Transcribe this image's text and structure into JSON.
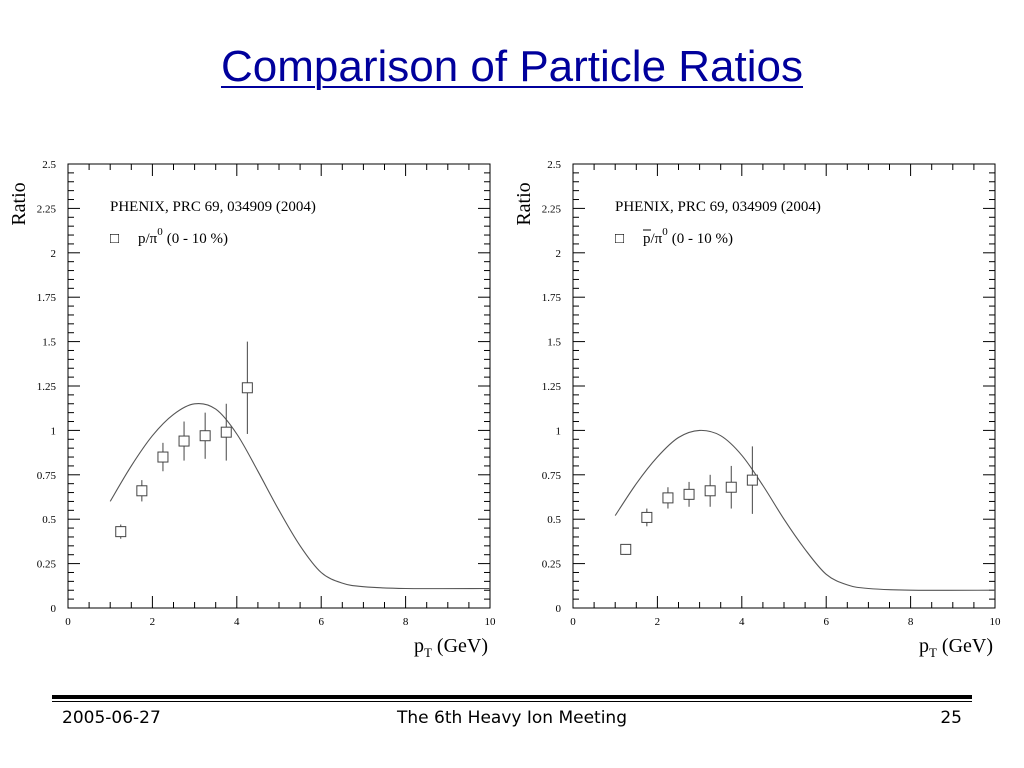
{
  "slide": {
    "title": "Comparison of Particle Ratios"
  },
  "footer": {
    "date": "2005-06-27",
    "event": "The 6th Heavy Ion Meeting",
    "page": "25"
  },
  "colors": {
    "title": "#00009c",
    "marker": "#444444",
    "curve": "#555555"
  },
  "chart_data": [
    {
      "type": "scatter",
      "ylabel": "Ratio",
      "xlabel_main": "p",
      "xlabel_sub": "T",
      "xlabel_units": "(GeV)",
      "xlim": [
        0,
        10
      ],
      "ylim": [
        0,
        2.5
      ],
      "x_ticks": [
        "0",
        "2",
        "4",
        "6",
        "8",
        "10"
      ],
      "y_ticks": [
        "0",
        "0.25",
        "0.5",
        "0.75",
        "1",
        "1.25",
        "1.5",
        "1.75",
        "2",
        "2.25",
        "2.5"
      ],
      "grid": false,
      "legend": {
        "reference": "PHENIX, PRC 69, 034909 (2004)",
        "marker_glyph": "□",
        "ratio_num": "p/π",
        "ratio_num_bar": false,
        "ratio_den_sup": "0",
        "centrality": "(0 - 10 %)"
      },
      "series": [
        {
          "x": [
            1.25,
            1.75,
            2.25,
            2.75,
            3.25,
            3.75,
            4.25
          ],
          "y": [
            0.43,
            0.66,
            0.85,
            0.94,
            0.97,
            0.99,
            1.24
          ],
          "err": [
            0.04,
            0.06,
            0.08,
            0.11,
            0.13,
            0.16,
            0.26
          ]
        }
      ],
      "curve": {
        "x": [
          1.0,
          1.5,
          2.0,
          2.5,
          3.0,
          3.5,
          4.0,
          4.5,
          5.0,
          5.5,
          6.0,
          6.5,
          7.0,
          8.0,
          10.0
        ],
        "y": [
          0.6,
          0.8,
          0.97,
          1.09,
          1.15,
          1.12,
          0.98,
          0.77,
          0.55,
          0.35,
          0.2,
          0.14,
          0.12,
          0.11,
          0.11
        ]
      }
    },
    {
      "type": "scatter",
      "ylabel": "Ratio",
      "xlabel_main": "p",
      "xlabel_sub": "T",
      "xlabel_units": "(GeV)",
      "xlim": [
        0,
        10
      ],
      "ylim": [
        0,
        2.5
      ],
      "x_ticks": [
        "0",
        "2",
        "4",
        "6",
        "8",
        "10"
      ],
      "y_ticks": [
        "0",
        "0.25",
        "0.5",
        "0.75",
        "1",
        "1.25",
        "1.5",
        "1.75",
        "2",
        "2.25",
        "2.5"
      ],
      "grid": false,
      "legend": {
        "reference": "PHENIX, PRC 69, 034909 (2004)",
        "marker_glyph": "□",
        "ratio_num": "p/π",
        "ratio_num_bar": true,
        "ratio_den_sup": "0",
        "centrality": "(0 - 10 %)"
      },
      "series": [
        {
          "x": [
            1.25,
            1.75,
            2.25,
            2.75,
            3.25,
            3.75,
            4.25
          ],
          "y": [
            0.33,
            0.51,
            0.62,
            0.64,
            0.66,
            0.68,
            0.72
          ],
          "err": [
            0.03,
            0.05,
            0.06,
            0.07,
            0.09,
            0.12,
            0.19
          ]
        }
      ],
      "curve": {
        "x": [
          1.0,
          1.5,
          2.0,
          2.5,
          3.0,
          3.5,
          4.0,
          4.5,
          5.0,
          5.5,
          6.0,
          6.5,
          7.0,
          8.0,
          10.0
        ],
        "y": [
          0.52,
          0.7,
          0.85,
          0.96,
          1.0,
          0.97,
          0.86,
          0.69,
          0.5,
          0.33,
          0.19,
          0.13,
          0.11,
          0.1,
          0.1
        ]
      }
    }
  ]
}
